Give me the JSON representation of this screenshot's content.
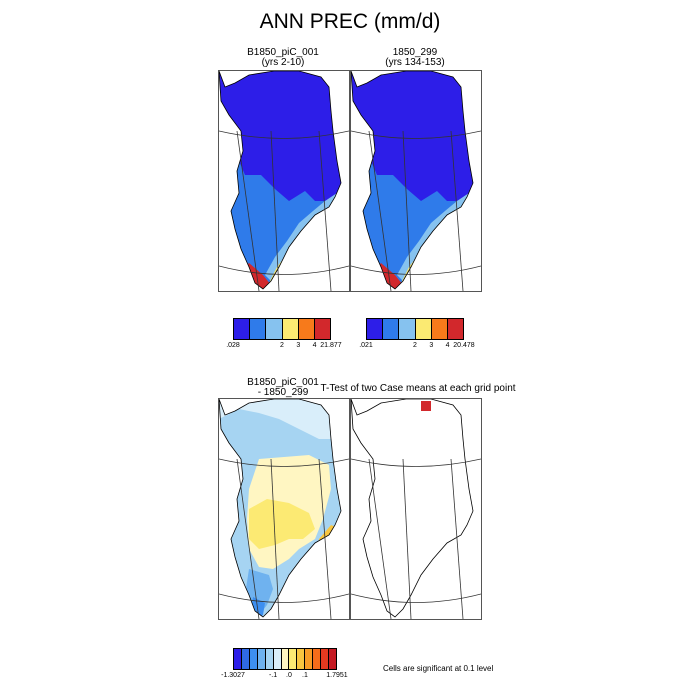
{
  "title": "ANN PREC (mm/d)",
  "note": "Cells are significant at 0.1 level",
  "panels": {
    "p1": {
      "title1": "B1850_piC_001",
      "title2": "(yrs 2-10)"
    },
    "p2": {
      "title1": "1850_299",
      "title2": "(yrs 134-153)"
    },
    "p3": {
      "title1": "B1850_piC_001",
      "title2": "- 1850_299"
    },
    "p4": {
      "title1": "T-Test of two Case means at each grid point"
    }
  },
  "colorbars": {
    "cb1": {
      "colors": [
        "#2d1ee8",
        "#2f7bea",
        "#86c2ef",
        "#fbea72",
        "#f77a1b",
        "#d2282c"
      ],
      "labels": [
        ".028",
        "2",
        "3",
        "4",
        "21.877"
      ]
    },
    "cb2": {
      "colors": [
        "#2d1ee8",
        "#2f7bea",
        "#86c2ef",
        "#fbea72",
        "#f77a1b",
        "#d2282c"
      ],
      "labels": [
        ".021",
        "2",
        "3",
        "4",
        "20.478"
      ]
    },
    "cb3": {
      "colors": [
        "#2d1ee8",
        "#2f6ae6",
        "#3d8ff0",
        "#6fb2ef",
        "#a6d4f2",
        "#d9eefa",
        "#fff6c2",
        "#fcea73",
        "#f8c640",
        "#f79c26",
        "#f56d1a",
        "#e53a20",
        "#c51a23"
      ],
      "labels": [
        "-1.3027",
        "-.1",
        ".0",
        ".1",
        "1.7951"
      ]
    }
  },
  "chart_data": {
    "type": "heatmap",
    "title": "ANN PREC (mm/d)",
    "panels": [
      {
        "name": "B1850_piC_001 (yrs 2-10)",
        "min": 0.028,
        "max": 21.877,
        "levels": [
          2,
          3,
          4
        ]
      },
      {
        "name": "1850_299 (yrs 134-153)",
        "min": 0.021,
        "max": 20.478,
        "levels": [
          2,
          3,
          4
        ]
      },
      {
        "name": "B1850_piC_001 - 1850_299",
        "min": -1.3027,
        "max": 1.7951,
        "levels": [
          -0.1,
          0.0,
          0.1
        ]
      },
      {
        "name": "T-Test of two Case means at each grid point",
        "significance": 0.1
      }
    ]
  }
}
